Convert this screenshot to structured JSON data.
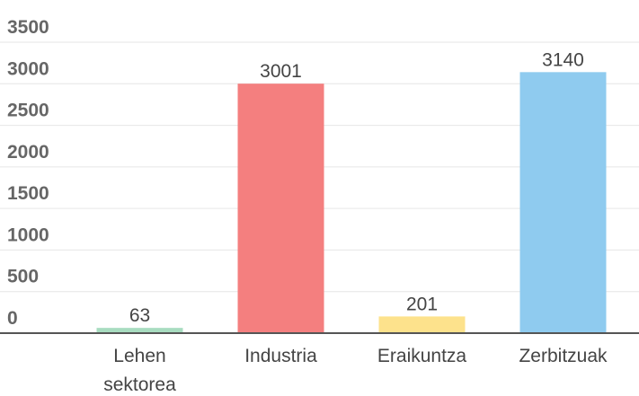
{
  "chart_data": {
    "type": "bar",
    "categories": [
      "Lehen sektorea",
      "Industria",
      "Eraikuntza",
      "Zerbitzuak"
    ],
    "values": [
      63,
      3001,
      201,
      3140
    ],
    "colors": [
      "#a8dcc0",
      "#f47f7f",
      "#fde28c",
      "#8fcbef"
    ],
    "ylim": [
      0,
      3500
    ],
    "yticks": [
      0,
      500,
      1000,
      1500,
      2000,
      2500,
      3000,
      3500
    ],
    "grid": true
  }
}
